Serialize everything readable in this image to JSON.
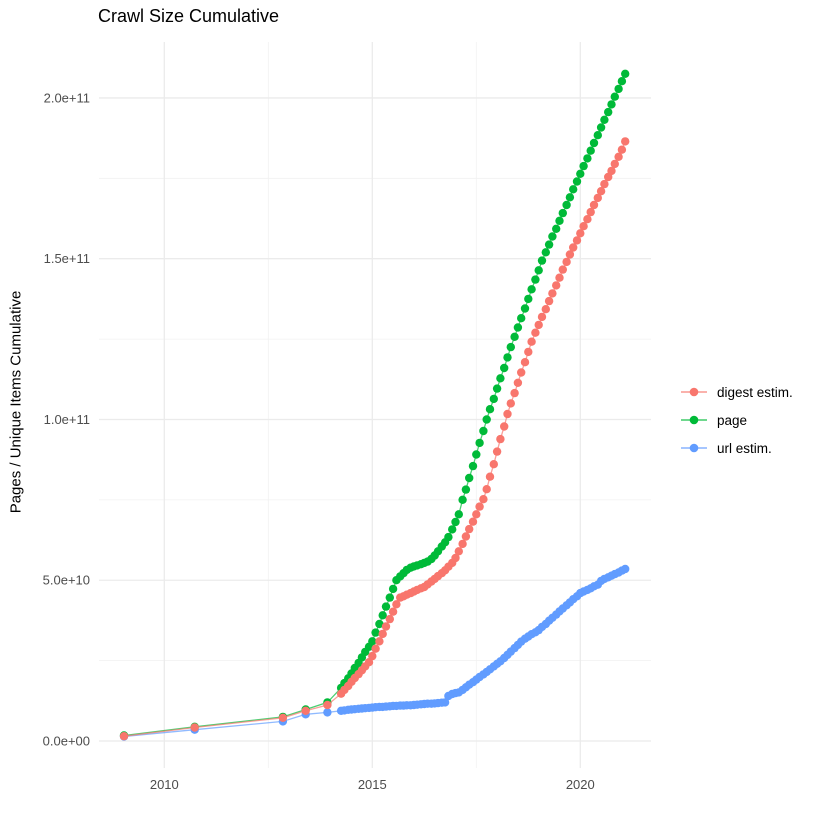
{
  "chart_data": {
    "type": "scatter",
    "title": "Crawl Size Cumulative",
    "xlabel": "",
    "ylabel": "Pages / Unique Items Cumulative",
    "value_unit": "1e9 (values below are billions of pages / items)",
    "x_ticks": [
      2010,
      2015,
      2020
    ],
    "x_tick_labels": [
      "2010",
      "2015",
      "2020"
    ],
    "y_tick_values": [
      0,
      50,
      100,
      150,
      200
    ],
    "y_tick_labels": [
      "0.0e+00",
      "5.0e+10",
      "1.0e+11",
      "1.5e+11",
      "2.0e+11"
    ],
    "x_minor": [
      2012.5,
      2017.5
    ],
    "y_minor": [
      25,
      75,
      125,
      175
    ],
    "xlim": [
      2008.43,
      2021.7
    ],
    "ylim": [
      -8.4,
      217.4
    ],
    "grid": "white background, light grey major and minor gridlines, no axis lines",
    "legend_position": "right",
    "draw_order": [
      2,
      1,
      0
    ],
    "series": [
      {
        "name": "digest estim.",
        "color": "#F8766D",
        "points": [
          [
            2009.03,
            1.5
          ],
          [
            2010.73,
            4.2
          ],
          [
            2012.85,
            7.2
          ],
          [
            2013.4,
            9.4
          ],
          [
            2013.92,
            11.2
          ],
          [
            2014.25,
            14.7
          ],
          [
            2014.33,
            15.9
          ],
          [
            2014.42,
            17.1
          ],
          [
            2014.5,
            18.4
          ],
          [
            2014.58,
            19.6
          ],
          [
            2014.67,
            20.8
          ],
          [
            2014.75,
            22.0
          ],
          [
            2014.83,
            23.2
          ],
          [
            2014.92,
            24.5
          ],
          [
            2015.0,
            26.4
          ],
          [
            2015.08,
            28.7
          ],
          [
            2015.17,
            31.0
          ],
          [
            2015.25,
            33.3
          ],
          [
            2015.33,
            35.6
          ],
          [
            2015.42,
            37.9
          ],
          [
            2015.5,
            40.2
          ],
          [
            2015.58,
            42.5
          ],
          [
            2015.67,
            44.6
          ],
          [
            2015.75,
            45.0
          ],
          [
            2015.83,
            45.5
          ],
          [
            2015.92,
            46.0
          ],
          [
            2016.0,
            46.5
          ],
          [
            2016.08,
            47.0
          ],
          [
            2016.17,
            47.5
          ],
          [
            2016.25,
            47.9
          ],
          [
            2016.33,
            48.7
          ],
          [
            2016.42,
            49.6
          ],
          [
            2016.5,
            50.4
          ],
          [
            2016.58,
            51.3
          ],
          [
            2016.67,
            52.2
          ],
          [
            2016.75,
            53.1
          ],
          [
            2016.83,
            54.2
          ],
          [
            2016.92,
            55.4
          ],
          [
            2017.0,
            56.9
          ],
          [
            2017.08,
            59.0
          ],
          [
            2017.17,
            61.3
          ],
          [
            2017.25,
            63.6
          ],
          [
            2017.33,
            65.9
          ],
          [
            2017.42,
            68.2
          ],
          [
            2017.5,
            70.5
          ],
          [
            2017.58,
            72.9
          ],
          [
            2017.67,
            75.2
          ],
          [
            2017.75,
            78.3
          ],
          [
            2017.83,
            82.2
          ],
          [
            2017.92,
            86.1
          ],
          [
            2018.0,
            90.0
          ],
          [
            2018.08,
            93.9
          ],
          [
            2018.17,
            97.8
          ],
          [
            2018.25,
            101.7
          ],
          [
            2018.33,
            105.0
          ],
          [
            2018.42,
            108.2
          ],
          [
            2018.5,
            111.4
          ],
          [
            2018.58,
            114.6
          ],
          [
            2018.67,
            117.8
          ],
          [
            2018.75,
            121.0
          ],
          [
            2018.83,
            124.2
          ],
          [
            2018.92,
            127.0
          ],
          [
            2019.0,
            129.4
          ],
          [
            2019.08,
            131.9
          ],
          [
            2019.17,
            134.3
          ],
          [
            2019.25,
            136.8
          ],
          [
            2019.33,
            139.2
          ],
          [
            2019.42,
            141.7
          ],
          [
            2019.5,
            144.1
          ],
          [
            2019.58,
            146.6
          ],
          [
            2019.67,
            149.0
          ],
          [
            2019.75,
            151.3
          ],
          [
            2019.83,
            153.5
          ],
          [
            2019.92,
            155.7
          ],
          [
            2020.0,
            157.9
          ],
          [
            2020.08,
            160.1
          ],
          [
            2020.17,
            162.3
          ],
          [
            2020.25,
            164.5
          ],
          [
            2020.33,
            166.7
          ],
          [
            2020.42,
            168.9
          ],
          [
            2020.5,
            171.0
          ],
          [
            2020.58,
            173.2
          ],
          [
            2020.67,
            175.4
          ],
          [
            2020.75,
            177.3
          ],
          [
            2020.83,
            179.5
          ],
          [
            2020.92,
            181.7
          ],
          [
            2021.0,
            183.9
          ],
          [
            2021.08,
            186.5
          ]
        ]
      },
      {
        "name": "page",
        "color": "#00BA38",
        "points": [
          [
            2009.03,
            1.7
          ],
          [
            2010.73,
            4.4
          ],
          [
            2012.85,
            7.5
          ],
          [
            2013.4,
            9.8
          ],
          [
            2013.92,
            12.0
          ],
          [
            2014.25,
            16.5
          ],
          [
            2014.33,
            18.0
          ],
          [
            2014.42,
            19.5
          ],
          [
            2014.5,
            21.0
          ],
          [
            2014.58,
            22.7
          ],
          [
            2014.67,
            24.3
          ],
          [
            2014.75,
            26.0
          ],
          [
            2014.83,
            27.7
          ],
          [
            2014.92,
            29.3
          ],
          [
            2015.0,
            31.0
          ],
          [
            2015.08,
            33.7
          ],
          [
            2015.17,
            36.4
          ],
          [
            2015.25,
            39.1
          ],
          [
            2015.33,
            41.8
          ],
          [
            2015.42,
            44.6
          ],
          [
            2015.5,
            47.3
          ],
          [
            2015.58,
            50.0
          ],
          [
            2015.67,
            51.2
          ],
          [
            2015.75,
            52.2
          ],
          [
            2015.83,
            53.2
          ],
          [
            2015.92,
            53.9
          ],
          [
            2016.0,
            54.3
          ],
          [
            2016.08,
            54.6
          ],
          [
            2016.17,
            55.0
          ],
          [
            2016.25,
            55.4
          ],
          [
            2016.33,
            55.8
          ],
          [
            2016.42,
            56.6
          ],
          [
            2016.5,
            57.7
          ],
          [
            2016.58,
            59.0
          ],
          [
            2016.67,
            60.5
          ],
          [
            2016.75,
            61.8
          ],
          [
            2016.83,
            63.4
          ],
          [
            2016.92,
            65.8
          ],
          [
            2017.0,
            68.1
          ],
          [
            2017.08,
            70.5
          ],
          [
            2017.17,
            75.0
          ],
          [
            2017.25,
            78.2
          ],
          [
            2017.33,
            81.8
          ],
          [
            2017.42,
            85.5
          ],
          [
            2017.5,
            89.1
          ],
          [
            2017.58,
            92.7
          ],
          [
            2017.67,
            96.4
          ],
          [
            2017.75,
            100.0
          ],
          [
            2017.83,
            103.2
          ],
          [
            2017.92,
            106.4
          ],
          [
            2018.0,
            109.6
          ],
          [
            2018.08,
            112.8
          ],
          [
            2018.17,
            116.0
          ],
          [
            2018.25,
            119.3
          ],
          [
            2018.33,
            122.5
          ],
          [
            2018.42,
            125.7
          ],
          [
            2018.5,
            128.6
          ],
          [
            2018.58,
            131.5
          ],
          [
            2018.67,
            134.5
          ],
          [
            2018.75,
            137.5
          ],
          [
            2018.83,
            140.5
          ],
          [
            2018.92,
            143.5
          ],
          [
            2019.0,
            146.4
          ],
          [
            2019.08,
            149.4
          ],
          [
            2019.17,
            152.0
          ],
          [
            2019.25,
            154.4
          ],
          [
            2019.33,
            156.9
          ],
          [
            2019.42,
            159.3
          ],
          [
            2019.5,
            161.8
          ],
          [
            2019.58,
            164.2
          ],
          [
            2019.67,
            166.7
          ],
          [
            2019.75,
            169.1
          ],
          [
            2019.83,
            171.6
          ],
          [
            2019.92,
            174.0
          ],
          [
            2020.0,
            176.4
          ],
          [
            2020.08,
            178.8
          ],
          [
            2020.17,
            181.2
          ],
          [
            2020.25,
            183.6
          ],
          [
            2020.33,
            186.0
          ],
          [
            2020.42,
            188.4
          ],
          [
            2020.5,
            190.8
          ],
          [
            2020.58,
            193.2
          ],
          [
            2020.67,
            195.6
          ],
          [
            2020.75,
            198.0
          ],
          [
            2020.83,
            200.4
          ],
          [
            2020.92,
            202.8
          ],
          [
            2021.0,
            205.2
          ],
          [
            2021.08,
            207.5
          ]
        ]
      },
      {
        "name": "url estim.",
        "color": "#619CFF",
        "points": [
          [
            2009.03,
            1.4
          ],
          [
            2010.73,
            3.5
          ],
          [
            2012.85,
            6.1
          ],
          [
            2013.4,
            8.3
          ],
          [
            2013.92,
            8.9
          ],
          [
            2014.25,
            9.4
          ],
          [
            2014.33,
            9.5
          ],
          [
            2014.42,
            9.7
          ],
          [
            2014.5,
            9.8
          ],
          [
            2014.58,
            9.9
          ],
          [
            2014.67,
            10.0
          ],
          [
            2014.75,
            10.1
          ],
          [
            2014.83,
            10.2
          ],
          [
            2014.92,
            10.3
          ],
          [
            2015.0,
            10.4
          ],
          [
            2015.08,
            10.5
          ],
          [
            2015.17,
            10.6
          ],
          [
            2015.25,
            10.6
          ],
          [
            2015.33,
            10.7
          ],
          [
            2015.42,
            10.8
          ],
          [
            2015.5,
            10.9
          ],
          [
            2015.58,
            10.9
          ],
          [
            2015.67,
            11.0
          ],
          [
            2015.75,
            11.0
          ],
          [
            2015.83,
            11.1
          ],
          [
            2015.92,
            11.1
          ],
          [
            2016.0,
            11.2
          ],
          [
            2016.08,
            11.3
          ],
          [
            2016.17,
            11.4
          ],
          [
            2016.25,
            11.5
          ],
          [
            2016.33,
            11.6
          ],
          [
            2016.42,
            11.6
          ],
          [
            2016.5,
            11.7
          ],
          [
            2016.58,
            11.8
          ],
          [
            2016.67,
            11.9
          ],
          [
            2016.75,
            12.0
          ],
          [
            2016.83,
            14.0
          ],
          [
            2016.92,
            14.6
          ],
          [
            2017.0,
            14.9
          ],
          [
            2017.08,
            15.1
          ],
          [
            2017.17,
            15.9
          ],
          [
            2017.25,
            16.7
          ],
          [
            2017.33,
            17.5
          ],
          [
            2017.42,
            18.3
          ],
          [
            2017.5,
            19.1
          ],
          [
            2017.58,
            19.9
          ],
          [
            2017.67,
            20.7
          ],
          [
            2017.75,
            21.5
          ],
          [
            2017.83,
            22.3
          ],
          [
            2017.92,
            23.2
          ],
          [
            2018.0,
            24.0
          ],
          [
            2018.08,
            24.8
          ],
          [
            2018.17,
            25.8
          ],
          [
            2018.25,
            26.8
          ],
          [
            2018.33,
            27.8
          ],
          [
            2018.42,
            28.9
          ],
          [
            2018.5,
            29.9
          ],
          [
            2018.58,
            30.9
          ],
          [
            2018.67,
            31.8
          ],
          [
            2018.75,
            32.5
          ],
          [
            2018.83,
            33.2
          ],
          [
            2018.92,
            33.8
          ],
          [
            2019.0,
            34.5
          ],
          [
            2019.08,
            35.5
          ],
          [
            2019.17,
            36.4
          ],
          [
            2019.25,
            37.4
          ],
          [
            2019.33,
            38.3
          ],
          [
            2019.42,
            39.3
          ],
          [
            2019.5,
            40.3
          ],
          [
            2019.58,
            41.2
          ],
          [
            2019.67,
            42.2
          ],
          [
            2019.75,
            43.1
          ],
          [
            2019.83,
            44.1
          ],
          [
            2019.92,
            45.0
          ],
          [
            2020.0,
            46.0
          ],
          [
            2020.08,
            46.5
          ],
          [
            2020.17,
            47.0
          ],
          [
            2020.25,
            47.5
          ],
          [
            2020.33,
            48.1
          ],
          [
            2020.42,
            48.6
          ],
          [
            2020.5,
            49.8
          ],
          [
            2020.58,
            50.4
          ],
          [
            2020.67,
            50.9
          ],
          [
            2020.75,
            51.4
          ],
          [
            2020.83,
            51.9
          ],
          [
            2020.92,
            52.4
          ],
          [
            2021.0,
            53.0
          ],
          [
            2021.08,
            53.5
          ]
        ]
      }
    ]
  },
  "legend": {
    "items": [
      {
        "label": "digest estim.",
        "color": "#F8766D"
      },
      {
        "label": "page",
        "color": "#00BA38"
      },
      {
        "label": "url estim.",
        "color": "#619CFF"
      }
    ]
  },
  "style": {
    "grid_major_color": "#EBEBEB",
    "grid_minor_color": "#F1F1F1",
    "tick_label_color": "#4D4D4D",
    "point_radius": 4.2
  }
}
